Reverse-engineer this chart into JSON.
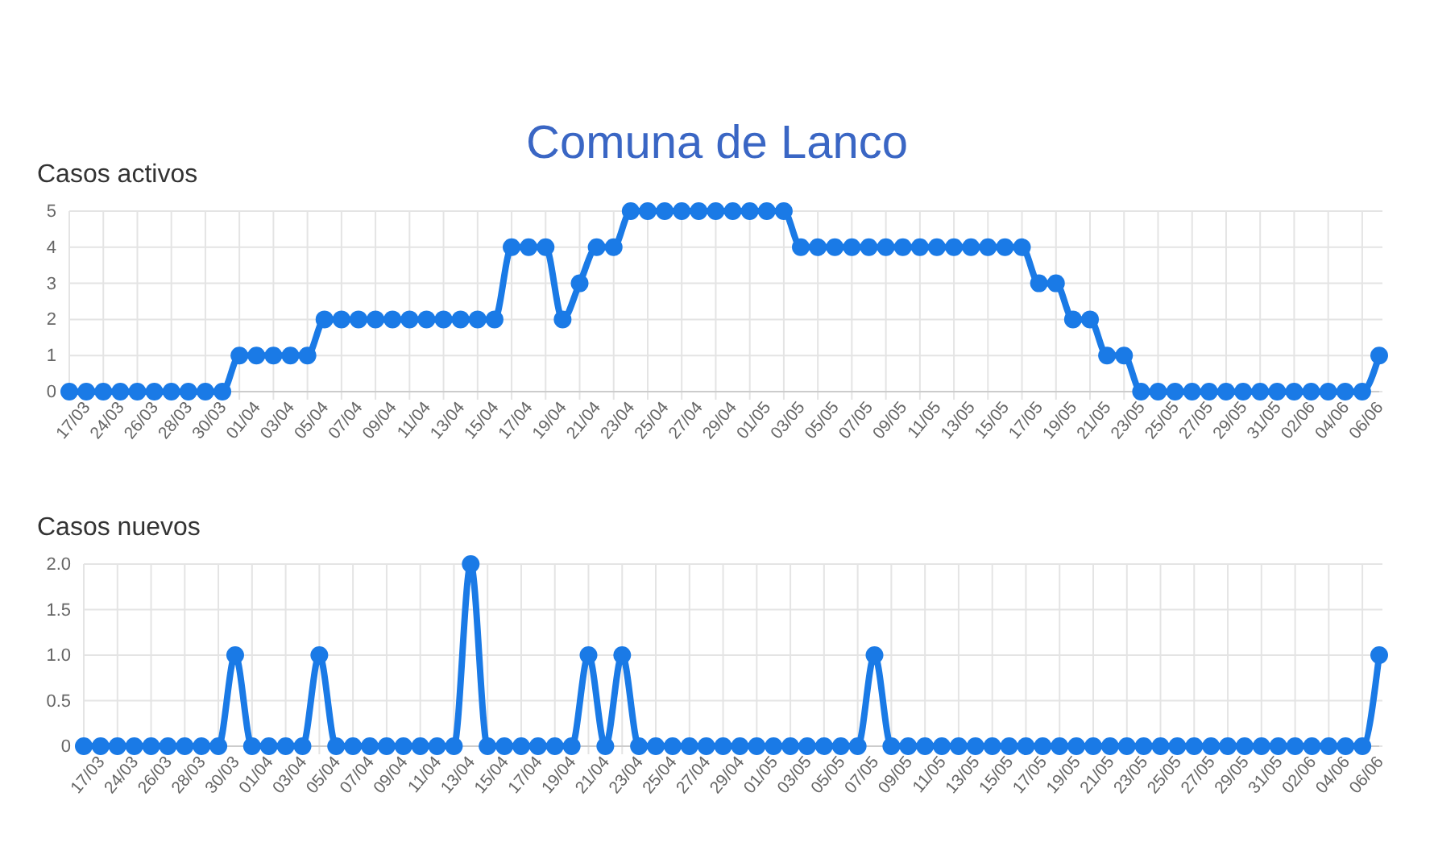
{
  "chart_data": [
    {
      "type": "line",
      "title": "Comuna de Lanco",
      "subtitle": "Casos activos",
      "categories": [
        "17/03",
        null,
        "24/03",
        null,
        "26/03",
        null,
        "28/03",
        null,
        "30/03",
        null,
        "01/04",
        null,
        "03/04",
        null,
        "05/04",
        null,
        "07/04",
        null,
        "09/04",
        null,
        "11/04",
        null,
        "13/04",
        null,
        "15/04",
        null,
        "17/04",
        null,
        "19/04",
        null,
        "21/04",
        null,
        "23/04",
        null,
        "25/04",
        null,
        "27/04",
        null,
        "29/04",
        null,
        "01/05",
        null,
        "03/05",
        null,
        "05/05",
        null,
        "07/05",
        null,
        "09/05",
        null,
        "11/05",
        null,
        "13/05",
        null,
        "15/05",
        null,
        "17/05",
        null,
        "19/05",
        null,
        "21/05",
        null,
        "23/05",
        null,
        "25/05",
        null,
        "27/05",
        null,
        "29/05",
        null,
        "31/05",
        null,
        "02/06",
        null,
        "04/06",
        null,
        "06/06",
        null
      ],
      "series": [
        {
          "color": "#1a7ae6",
          "values": [
            0,
            0,
            0,
            0,
            0,
            0,
            0,
            0,
            0,
            0,
            1,
            1,
            1,
            1,
            1,
            2,
            2,
            2,
            2,
            2,
            2,
            2,
            2,
            2,
            2,
            2,
            4,
            4,
            4,
            2,
            3,
            4,
            4,
            5,
            5,
            5,
            5,
            5,
            5,
            5,
            5,
            5,
            5,
            4,
            4,
            4,
            4,
            4,
            4,
            4,
            4,
            4,
            4,
            4,
            4,
            4,
            4,
            3,
            3,
            2,
            2,
            1,
            1,
            0,
            0,
            0,
            0,
            0,
            0,
            0,
            0,
            0,
            0,
            0,
            0,
            0,
            0,
            1
          ]
        }
      ],
      "ylim": [
        0,
        5
      ],
      "yticks": [
        0,
        1,
        2,
        3,
        4,
        5
      ],
      "grid": true,
      "marker": "circle",
      "line_style": "solid"
    },
    {
      "type": "line",
      "title": "Casos nuevos",
      "categories": [
        "17/03",
        null,
        "24/03",
        null,
        "26/03",
        null,
        "28/03",
        null,
        "30/03",
        null,
        "01/04",
        null,
        "03/04",
        null,
        "05/04",
        null,
        "07/04",
        null,
        "09/04",
        null,
        "11/04",
        null,
        "13/04",
        null,
        "15/04",
        null,
        "17/04",
        null,
        "19/04",
        null,
        "21/04",
        null,
        "23/04",
        null,
        "25/04",
        null,
        "27/04",
        null,
        "29/04",
        null,
        "01/05",
        null,
        "03/05",
        null,
        "05/05",
        null,
        "07/05",
        null,
        "09/05",
        null,
        "11/05",
        null,
        "13/05",
        null,
        "15/05",
        null,
        "17/05",
        null,
        "19/05",
        null,
        "21/05",
        null,
        "23/05",
        null,
        "25/05",
        null,
        "27/05",
        null,
        "29/05",
        null,
        "31/05",
        null,
        "02/06",
        null,
        "04/06",
        null,
        "06/06",
        null
      ],
      "series": [
        {
          "color": "#1a7ae6",
          "values": [
            0,
            0,
            0,
            0,
            0,
            0,
            0,
            0,
            0,
            1,
            0,
            0,
            0,
            0,
            1,
            0,
            0,
            0,
            0,
            0,
            0,
            0,
            0,
            2,
            0,
            0,
            0,
            0,
            0,
            0,
            1,
            0,
            1,
            0,
            0,
            0,
            0,
            0,
            0,
            0,
            0,
            0,
            0,
            0,
            0,
            0,
            0,
            1,
            0,
            0,
            0,
            0,
            0,
            0,
            0,
            0,
            0,
            0,
            0,
            0,
            0,
            0,
            0,
            0,
            0,
            0,
            0,
            0,
            0,
            0,
            0,
            0,
            0,
            0,
            0,
            0,
            0,
            1
          ]
        }
      ],
      "ylim": [
        0,
        2
      ],
      "yticks": [
        0,
        {
          "value": 0.5,
          "label": "0.5"
        },
        {
          "value": 1,
          "label": "1.0"
        },
        {
          "value": 1.5,
          "label": "1.5"
        },
        {
          "value": 2,
          "label": "2.0"
        }
      ],
      "grid": true,
      "marker": "circle",
      "line_style": "solid"
    }
  ]
}
